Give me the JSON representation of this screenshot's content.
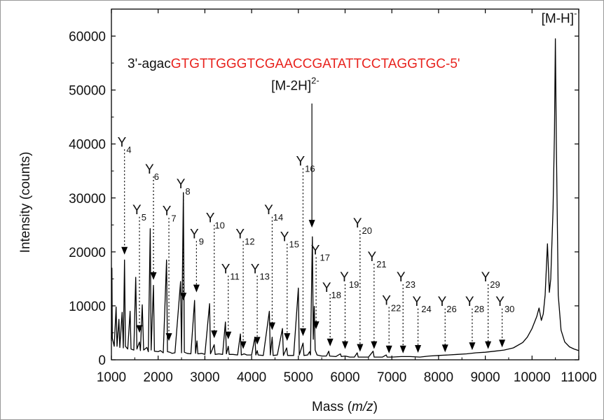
{
  "chart_data": {
    "type": "line",
    "title": "",
    "xlabel": "Mass (m/z)",
    "xlabel_prefix": "Mass (",
    "xlabel_italic": "m/z",
    "xlabel_suffix": ")",
    "ylabel": "Intensity (counts)",
    "xlim": [
      1000,
      11000
    ],
    "ylim": [
      0,
      65000
    ],
    "x_ticks": [
      1000,
      2000,
      3000,
      4000,
      5000,
      6000,
      7000,
      8000,
      9000,
      10000,
      11000
    ],
    "y_ticks": [
      0,
      10000,
      20000,
      30000,
      40000,
      50000,
      60000
    ],
    "grid": false,
    "sequence": {
      "prefix": "3'-agac",
      "highlight": "GTGTTGGGTCGAACCGATATTCCTAGGTGC-5'",
      "prefix_color": "#111111",
      "highlight_color": "#e8231e"
    },
    "line_color": "#000000",
    "spectrum": [
      [
        1000,
        3500
      ],
      [
        1010,
        17000
      ],
      [
        1020,
        4000
      ],
      [
        1060,
        2500
      ],
      [
        1100,
        9800
      ],
      [
        1120,
        2500
      ],
      [
        1160,
        7500
      ],
      [
        1180,
        2300
      ],
      [
        1230,
        8800
      ],
      [
        1255,
        2200
      ],
      [
        1280,
        18500
      ],
      [
        1300,
        2500
      ],
      [
        1350,
        2000
      ],
      [
        1400,
        9000
      ],
      [
        1420,
        2000
      ],
      [
        1480,
        1800
      ],
      [
        1520,
        15300
      ],
      [
        1545,
        2000
      ],
      [
        1600,
        3300
      ],
      [
        1620,
        1700
      ],
      [
        1660,
        10200
      ],
      [
        1690,
        1800
      ],
      [
        1760,
        2300
      ],
      [
        1790,
        1500
      ],
      [
        1830,
        24300
      ],
      [
        1850,
        1800
      ],
      [
        1900,
        13800
      ],
      [
        1920,
        1600
      ],
      [
        2000,
        1500
      ],
      [
        2050,
        1700
      ],
      [
        2110,
        1300
      ],
      [
        2180,
        18500
      ],
      [
        2200,
        1500
      ],
      [
        2250,
        1400
      ],
      [
        2300,
        1200
      ],
      [
        2360,
        1300
      ],
      [
        2480,
        14500
      ],
      [
        2500,
        1300
      ],
      [
        2540,
        31000
      ],
      [
        2560,
        1400
      ],
      [
        2620,
        1200
      ],
      [
        2700,
        1100
      ],
      [
        2780,
        11000
      ],
      [
        2800,
        1200
      ],
      [
        2830,
        3500
      ],
      [
        2850,
        1100
      ],
      [
        2930,
        1200
      ],
      [
        3000,
        1000
      ],
      [
        3100,
        10400
      ],
      [
        3120,
        1100
      ],
      [
        3200,
        2800
      ],
      [
        3220,
        1000
      ],
      [
        3300,
        1100
      ],
      [
        3380,
        1000
      ],
      [
        3440,
        7000
      ],
      [
        3460,
        1100
      ],
      [
        3500,
        2500
      ],
      [
        3520,
        1000
      ],
      [
        3600,
        1000
      ],
      [
        3700,
        900
      ],
      [
        3760,
        4800
      ],
      [
        3780,
        900
      ],
      [
        3840,
        1100
      ],
      [
        3900,
        900
      ],
      [
        4000,
        900
      ],
      [
        4070,
        4200
      ],
      [
        4090,
        900
      ],
      [
        4120,
        1700
      ],
      [
        4140,
        900
      ],
      [
        4250,
        800
      ],
      [
        4380,
        9000
      ],
      [
        4400,
        900
      ],
      [
        4440,
        4200
      ],
      [
        4460,
        800
      ],
      [
        4550,
        900
      ],
      [
        4660,
        5800
      ],
      [
        4680,
        800
      ],
      [
        4750,
        2200
      ],
      [
        4770,
        800
      ],
      [
        4900,
        800
      ],
      [
        5000,
        13300
      ],
      [
        5020,
        900
      ],
      [
        5100,
        3100
      ],
      [
        5120,
        800
      ],
      [
        5200,
        900
      ],
      [
        5240,
        1500
      ],
      [
        5260,
        900
      ],
      [
        5300,
        22800
      ],
      [
        5320,
        3800
      ],
      [
        5340,
        9900
      ],
      [
        5360,
        1800
      ],
      [
        5400,
        900
      ],
      [
        5500,
        700
      ],
      [
        5600,
        700
      ],
      [
        5650,
        1600
      ],
      [
        5670,
        700
      ],
      [
        5800,
        600
      ],
      [
        5900,
        1100
      ],
      [
        5920,
        600
      ],
      [
        6000,
        700
      ],
      [
        6100,
        500
      ],
      [
        6200,
        500
      ],
      [
        6260,
        1300
      ],
      [
        6280,
        500
      ],
      [
        6400,
        500
      ],
      [
        6500,
        500
      ],
      [
        6600,
        1600
      ],
      [
        6620,
        500
      ],
      [
        6700,
        500
      ],
      [
        6800,
        500
      ],
      [
        6880,
        900
      ],
      [
        6900,
        500
      ],
      [
        7000,
        500
      ],
      [
        7200,
        600
      ],
      [
        7400,
        600
      ],
      [
        7600,
        500
      ],
      [
        7800,
        700
      ],
      [
        8000,
        800
      ],
      [
        8200,
        900
      ],
      [
        8400,
        1000
      ],
      [
        8600,
        1100
      ],
      [
        8800,
        1300
      ],
      [
        9000,
        1400
      ],
      [
        9200,
        1600
      ],
      [
        9400,
        1800
      ],
      [
        9600,
        2200
      ],
      [
        9800,
        3200
      ],
      [
        9900,
        4200
      ],
      [
        10000,
        5800
      ],
      [
        10100,
        8000
      ],
      [
        10150,
        9600
      ],
      [
        10200,
        7300
      ],
      [
        10240,
        8500
      ],
      [
        10280,
        12000
      ],
      [
        10330,
        21500
      ],
      [
        10370,
        12500
      ],
      [
        10400,
        15000
      ],
      [
        10450,
        28000
      ],
      [
        10480,
        42000
      ],
      [
        10500,
        59500
      ],
      [
        10520,
        40000
      ],
      [
        10560,
        12000
      ],
      [
        10620,
        5500
      ],
      [
        10700,
        3300
      ],
      [
        10800,
        2400
      ],
      [
        10900,
        2000
      ],
      [
        11000,
        1700
      ]
    ],
    "annotations": [
      {
        "label": "Y",
        "sub": "4",
        "x": 1280,
        "y_top": 39000,
        "y_arrow": 19500,
        "tx": 1130,
        "ty": 39500
      },
      {
        "label": "Y",
        "sub": "5",
        "x": 1600,
        "y_top": 26500,
        "y_arrow": 5000,
        "tx": 1450,
        "ty": 27000
      },
      {
        "label": "Y",
        "sub": "6",
        "x": 1900,
        "y_top": 34000,
        "y_arrow": 14800,
        "tx": 1720,
        "ty": 34500
      },
      {
        "label": "Y",
        "sub": "7",
        "x": 2230,
        "y_top": 26300,
        "y_arrow": 3500,
        "tx": 2090,
        "ty": 26800
      },
      {
        "label": "Y",
        "sub": "8",
        "x": 2540,
        "y_top": 31000,
        "y_arrow": 11000,
        "tx": 2390,
        "ty": 31800
      },
      {
        "label": "Y",
        "sub": "9",
        "x": 2820,
        "y_top": 22000,
        "y_arrow": 12500,
        "tx": 2680,
        "ty": 22500
      },
      {
        "label": "Y",
        "sub": "10",
        "x": 3200,
        "y_top": 25000,
        "y_arrow": 4000,
        "tx": 3020,
        "ty": 25500
      },
      {
        "label": "Y",
        "sub": "11",
        "x": 3500,
        "y_top": 15600,
        "y_arrow": 3800,
        "tx": 3350,
        "ty": 16000
      },
      {
        "label": "Y",
        "sub": "12",
        "x": 3820,
        "y_top": 22000,
        "y_arrow": 2000,
        "tx": 3660,
        "ty": 22500
      },
      {
        "label": "Y",
        "sub": "13",
        "x": 4120,
        "y_top": 15600,
        "y_arrow": 2800,
        "tx": 3980,
        "ty": 16000
      },
      {
        "label": "Y",
        "sub": "14",
        "x": 4440,
        "y_top": 26500,
        "y_arrow": 5500,
        "tx": 4270,
        "ty": 27000
      },
      {
        "label": "Y",
        "sub": "15",
        "x": 4760,
        "y_top": 21500,
        "y_arrow": 3500,
        "tx": 4610,
        "ty": 22000
      },
      {
        "label": "Y",
        "sub": "16",
        "x": 5100,
        "y_top": 35500,
        "y_arrow": 4400,
        "tx": 4950,
        "ty": 36000
      },
      {
        "label": "Y",
        "sub": "17",
        "x": 5380,
        "y_top": 19000,
        "y_arrow": 5700,
        "tx": 5270,
        "ty": 19500
      },
      {
        "label": "Y",
        "sub": "18",
        "x": 5680,
        "y_top": 12200,
        "y_arrow": 2500,
        "tx": 5510,
        "ty": 12600
      },
      {
        "label": "Y",
        "sub": "19",
        "x": 6000,
        "y_top": 14000,
        "y_arrow": 2000,
        "tx": 5890,
        "ty": 14500
      },
      {
        "label": "Y",
        "sub": "20",
        "x": 6320,
        "y_top": 24000,
        "y_arrow": 1500,
        "tx": 6170,
        "ty": 24500
      },
      {
        "label": "Y",
        "sub": "21",
        "x": 6620,
        "y_top": 17800,
        "y_arrow": 2000,
        "tx": 6480,
        "ty": 18300
      },
      {
        "label": "Y",
        "sub": "22",
        "x": 6940,
        "y_top": 9800,
        "y_arrow": 1200,
        "tx": 6790,
        "ty": 10200
      },
      {
        "label": "Y",
        "sub": "23",
        "x": 7240,
        "y_top": 14000,
        "y_arrow": 1200,
        "tx": 7100,
        "ty": 14500
      },
      {
        "label": "Y",
        "sub": "24",
        "x": 7560,
        "y_top": 9500,
        "y_arrow": 1300,
        "tx": 7440,
        "ty": 10000
      },
      {
        "label": "Y",
        "sub": "26",
        "x": 8140,
        "y_top": 9500,
        "y_arrow": 1400,
        "tx": 7980,
        "ty": 10000
      },
      {
        "label": "Y",
        "sub": "28",
        "x": 8720,
        "y_top": 9500,
        "y_arrow": 1800,
        "tx": 8570,
        "ty": 10000
      },
      {
        "label": "Y",
        "sub": "29",
        "x": 9060,
        "y_top": 14000,
        "y_arrow": 2000,
        "tx": 8910,
        "ty": 14500
      },
      {
        "label": "Y",
        "sub": "30",
        "x": 9360,
        "y_top": 9500,
        "y_arrow": 2300,
        "tx": 9220,
        "ty": 10000
      }
    ],
    "main_peak_labels": [
      {
        "label": "[M-2H]",
        "sup": "2-",
        "x": 5290,
        "y_top": 47500,
        "y_arrow": 24500,
        "tx": 4420,
        "ty": 50000
      },
      {
        "label": "[M-H]",
        "sup": "-",
        "x": 10500,
        "tx": 10200,
        "ty": 62500
      }
    ]
  }
}
